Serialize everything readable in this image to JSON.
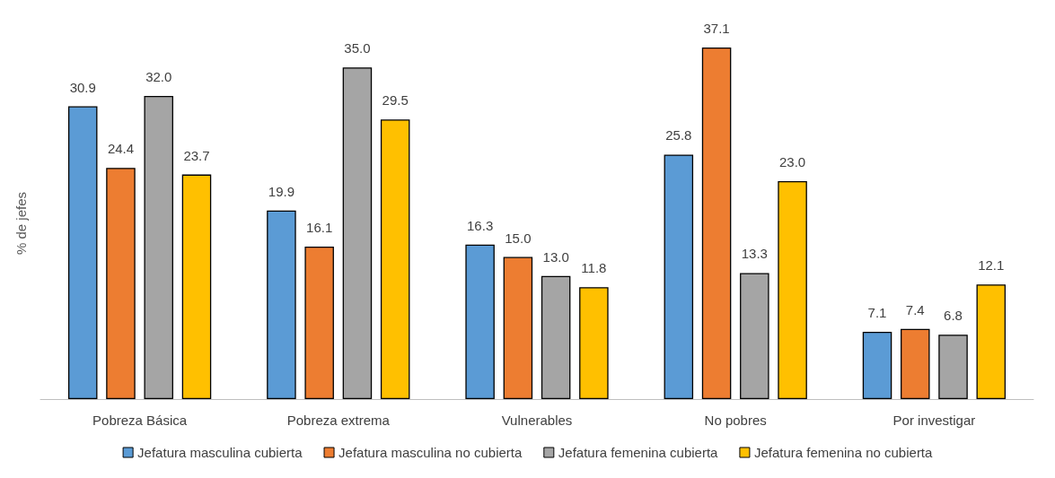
{
  "chart_data": {
    "type": "bar",
    "ylabel": "% de jefes",
    "categories": [
      "Pobreza Básica",
      "Pobreza extrema",
      "Vulnerables",
      "No pobres",
      "Por investigar"
    ],
    "series": [
      {
        "name": "Jefatura masculina cubierta",
        "color": "#5b9bd5",
        "values": [
          30.9,
          19.9,
          16.3,
          25.8,
          7.1
        ],
        "value_labels": [
          "30.9",
          "19.9",
          "16.3",
          "25.8",
          "7.1"
        ]
      },
      {
        "name": "Jefatura masculina no cubierta",
        "color": "#ed7d31",
        "values": [
          24.4,
          16.1,
          15.0,
          37.1,
          7.4
        ],
        "value_labels": [
          "24.4",
          "16.1",
          "15.0",
          "37.1",
          "7.4"
        ]
      },
      {
        "name": "Jefatura femenina cubierta",
        "color": "#a5a5a5",
        "values": [
          32.0,
          35.0,
          13.0,
          13.3,
          6.8
        ],
        "value_labels": [
          "32.0",
          "35.0",
          "13.0",
          "13.3",
          "6.8"
        ]
      },
      {
        "name": "Jefatura femenina no cubierta",
        "color": "#ffc000",
        "values": [
          23.7,
          29.5,
          11.8,
          23.0,
          12.1
        ],
        "value_labels": [
          "23.7",
          "29.5",
          "11.8",
          "23.0",
          "12.1"
        ]
      }
    ],
    "legend": "bottom",
    "grid": false
  }
}
